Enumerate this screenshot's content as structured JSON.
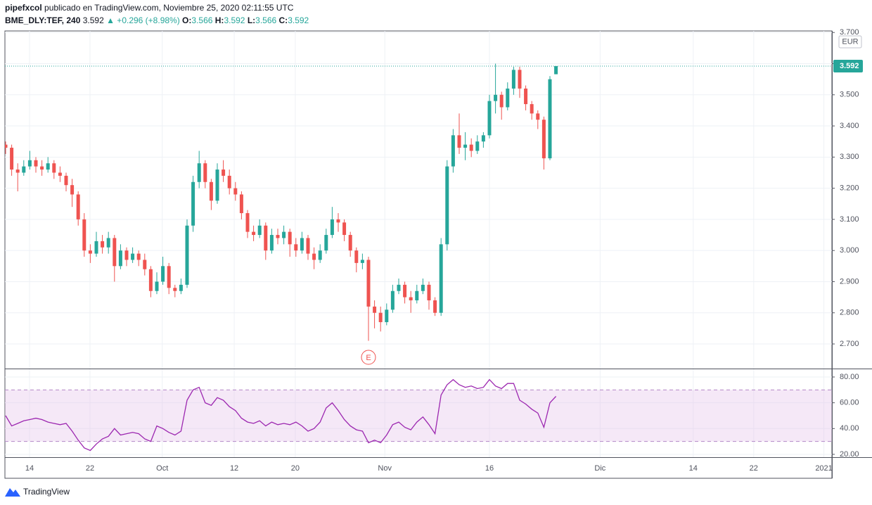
{
  "header": {
    "author": "pipefxcol",
    "published": "publicado en TradingView.com, Noviembre 25, 2020 02:11:55 UTC",
    "symbol": "BME_DLY:TEF, 240",
    "price": "3.592",
    "change": "▲ +0.296 (+8.98%)",
    "quote": [
      {
        "label": "O:",
        "value": "3.566"
      },
      {
        "label": "H:",
        "value": "3.592"
      },
      {
        "label": "L:",
        "value": "3.566"
      },
      {
        "label": "C:",
        "value": "3.592"
      }
    ]
  },
  "footer": {
    "brand": "TradingView"
  },
  "chart_data": [
    {
      "type": "candlestick",
      "currency": "EUR",
      "up_color": "#26a69a",
      "down_color": "#ef5350",
      "grid": true,
      "xlim": [
        -0.116,
        136.63
      ],
      "xticks": [
        {
          "value": 3.95,
          "label": "14"
        },
        {
          "value": 13.95,
          "label": "22"
        },
        {
          "value": 25.9,
          "label": "Oct"
        },
        {
          "value": 37.8,
          "label": "12"
        },
        {
          "value": 47.9,
          "label": "20"
        },
        {
          "value": 62.7,
          "label": "Nov"
        },
        {
          "value": 80,
          "label": "16"
        },
        {
          "value": 98.3,
          "label": "Dic"
        },
        {
          "value": 113.7,
          "label": "14"
        },
        {
          "value": 123.7,
          "label": "22"
        },
        {
          "value": 135.3,
          "label": "2021"
        }
      ],
      "ylim": [
        2.621,
        3.705
      ],
      "yticks": [
        {
          "value": 2.7,
          "label": "2.700"
        },
        {
          "value": 2.8,
          "label": "2.800"
        },
        {
          "value": 2.9,
          "label": "2.900"
        },
        {
          "value": 3.0,
          "label": "3.000"
        },
        {
          "value": 3.1,
          "label": "3.100"
        },
        {
          "value": 3.2,
          "label": "3.200"
        },
        {
          "value": 3.3,
          "label": "3.300"
        },
        {
          "value": 3.4,
          "label": "3.400"
        },
        {
          "value": 3.5,
          "label": "3.500"
        },
        {
          "value": 3.6,
          "label": "3.600"
        },
        {
          "value": 3.7,
          "label": "3.700"
        }
      ],
      "last": {
        "value": 3.592,
        "label": "3.592"
      },
      "events": [
        {
          "index": 60,
          "label": "E"
        }
      ],
      "ohlc": [
        [
          3.34,
          3.35,
          3.31,
          3.33
        ],
        [
          3.33,
          3.34,
          3.24,
          3.26
        ],
        [
          3.26,
          3.28,
          3.19,
          3.25
        ],
        [
          3.25,
          3.29,
          3.24,
          3.27
        ],
        [
          3.27,
          3.32,
          3.26,
          3.29
        ],
        [
          3.29,
          3.3,
          3.25,
          3.27
        ],
        [
          3.27,
          3.29,
          3.24,
          3.26
        ],
        [
          3.26,
          3.3,
          3.25,
          3.28
        ],
        [
          3.28,
          3.29,
          3.23,
          3.25
        ],
        [
          3.25,
          3.27,
          3.22,
          3.24
        ],
        [
          3.24,
          3.25,
          3.19,
          3.21
        ],
        [
          3.21,
          3.23,
          3.14,
          3.18
        ],
        [
          3.18,
          3.19,
          3.08,
          3.1
        ],
        [
          3.1,
          3.12,
          2.98,
          3.0
        ],
        [
          3.0,
          3.02,
          2.96,
          2.99
        ],
        [
          2.99,
          3.06,
          2.98,
          3.03
        ],
        [
          3.03,
          3.05,
          2.99,
          3.01
        ],
        [
          3.01,
          3.06,
          2.99,
          3.04
        ],
        [
          3.04,
          3.05,
          2.9,
          2.95
        ],
        [
          2.95,
          3.02,
          2.94,
          3.0
        ],
        [
          3.0,
          3.01,
          2.95,
          2.97
        ],
        [
          2.97,
          3.01,
          2.96,
          2.99
        ],
        [
          2.99,
          3.0,
          2.95,
          2.97
        ],
        [
          2.97,
          2.99,
          2.92,
          2.94
        ],
        [
          2.94,
          2.95,
          2.85,
          2.87
        ],
        [
          2.87,
          2.93,
          2.86,
          2.9
        ],
        [
          2.9,
          2.98,
          2.89,
          2.95
        ],
        [
          2.95,
          2.96,
          2.86,
          2.88
        ],
        [
          2.88,
          2.89,
          2.85,
          2.87
        ],
        [
          2.87,
          2.91,
          2.86,
          2.89
        ],
        [
          2.89,
          3.1,
          2.88,
          3.08
        ],
        [
          3.08,
          3.24,
          3.06,
          3.22
        ],
        [
          3.22,
          3.32,
          3.2,
          3.28
        ],
        [
          3.28,
          3.29,
          3.2,
          3.22
        ],
        [
          3.22,
          3.23,
          3.13,
          3.16
        ],
        [
          3.16,
          3.28,
          3.15,
          3.26
        ],
        [
          3.26,
          3.29,
          3.22,
          3.24
        ],
        [
          3.24,
          3.26,
          3.18,
          3.2
        ],
        [
          3.2,
          3.22,
          3.16,
          3.18
        ],
        [
          3.18,
          3.19,
          3.1,
          3.12
        ],
        [
          3.12,
          3.13,
          3.04,
          3.06
        ],
        [
          3.06,
          3.08,
          3.03,
          3.05
        ],
        [
          3.05,
          3.1,
          3.04,
          3.08
        ],
        [
          3.08,
          3.09,
          2.97,
          3.0
        ],
        [
          3.0,
          3.07,
          2.99,
          3.05
        ],
        [
          3.05,
          3.07,
          3.02,
          3.04
        ],
        [
          3.04,
          3.08,
          3.02,
          3.06
        ],
        [
          3.06,
          3.07,
          2.98,
          3.02
        ],
        [
          3.02,
          3.04,
          2.98,
          3.0
        ],
        [
          3.0,
          3.06,
          2.99,
          3.04
        ],
        [
          3.04,
          3.05,
          2.97,
          2.99
        ],
        [
          2.99,
          3.01,
          2.94,
          2.97
        ],
        [
          2.97,
          3.02,
          2.96,
          3.0
        ],
        [
          3.0,
          3.07,
          2.99,
          3.05
        ],
        [
          3.05,
          3.14,
          3.04,
          3.1
        ],
        [
          3.1,
          3.12,
          3.06,
          3.09
        ],
        [
          3.09,
          3.1,
          3.03,
          3.05
        ],
        [
          3.05,
          3.06,
          2.98,
          3.0
        ],
        [
          3.0,
          3.01,
          2.93,
          2.96
        ],
        [
          2.96,
          2.99,
          2.94,
          2.97
        ],
        [
          2.97,
          2.98,
          2.71,
          2.82
        ],
        [
          2.82,
          2.84,
          2.75,
          2.8
        ],
        [
          2.8,
          2.82,
          2.74,
          2.77
        ],
        [
          2.77,
          2.83,
          2.76,
          2.81
        ],
        [
          2.81,
          2.89,
          2.8,
          2.87
        ],
        [
          2.87,
          2.91,
          2.86,
          2.89
        ],
        [
          2.89,
          2.9,
          2.83,
          2.85
        ],
        [
          2.85,
          2.87,
          2.8,
          2.84
        ],
        [
          2.84,
          2.89,
          2.83,
          2.87
        ],
        [
          2.87,
          2.91,
          2.86,
          2.89
        ],
        [
          2.89,
          2.9,
          2.81,
          2.84
        ],
        [
          2.84,
          2.85,
          2.79,
          2.8
        ],
        [
          2.8,
          3.04,
          2.79,
          3.02
        ],
        [
          3.02,
          3.29,
          3.0,
          3.27
        ],
        [
          3.27,
          3.39,
          3.25,
          3.37
        ],
        [
          3.37,
          3.44,
          3.31,
          3.33
        ],
        [
          3.33,
          3.38,
          3.29,
          3.34
        ],
        [
          3.34,
          3.36,
          3.3,
          3.32
        ],
        [
          3.32,
          3.37,
          3.31,
          3.35
        ],
        [
          3.35,
          3.38,
          3.33,
          3.37
        ],
        [
          3.37,
          3.5,
          3.36,
          3.48
        ],
        [
          3.48,
          3.6,
          3.44,
          3.5
        ],
        [
          3.5,
          3.51,
          3.42,
          3.46
        ],
        [
          3.46,
          3.54,
          3.45,
          3.52
        ],
        [
          3.52,
          3.59,
          3.5,
          3.58
        ],
        [
          3.58,
          3.59,
          3.49,
          3.52
        ],
        [
          3.52,
          3.53,
          3.45,
          3.47
        ],
        [
          3.47,
          3.48,
          3.42,
          3.44
        ],
        [
          3.44,
          3.45,
          3.39,
          3.42
        ],
        [
          3.42,
          3.43,
          3.26,
          3.296
        ],
        [
          3.296,
          3.56,
          3.29,
          3.55
        ],
        [
          3.566,
          3.592,
          3.566,
          3.592
        ]
      ]
    },
    {
      "type": "line",
      "color": "#9c27b0",
      "band": [
        30,
        70
      ],
      "band_color": "#e1bee7",
      "ylim": [
        17.8,
        86
      ],
      "yticks": [
        {
          "value": 20,
          "label": "20.00"
        },
        {
          "value": 40,
          "label": "40.00"
        },
        {
          "value": 60,
          "label": "60.00"
        },
        {
          "value": 80,
          "label": "80.00"
        }
      ],
      "values": [
        50,
        42,
        44,
        46,
        47,
        48,
        47,
        45,
        44,
        43,
        44,
        38,
        31,
        25,
        23,
        28,
        32,
        34,
        40,
        35,
        36,
        37,
        36,
        32,
        30,
        42,
        40,
        37,
        35,
        38,
        62,
        70,
        72,
        60,
        58,
        64,
        62,
        57,
        54,
        48,
        45,
        44,
        46,
        42,
        45,
        43,
        44,
        43,
        45,
        42,
        38,
        40,
        45,
        56,
        60,
        54,
        47,
        42,
        39,
        38,
        29,
        31,
        29,
        35,
        43,
        45,
        41,
        39,
        45,
        49,
        43,
        36,
        66,
        74,
        78,
        74,
        72,
        73,
        71,
        72,
        78,
        73,
        71,
        75,
        75,
        62,
        59,
        55,
        52,
        41,
        60,
        65
      ]
    }
  ]
}
